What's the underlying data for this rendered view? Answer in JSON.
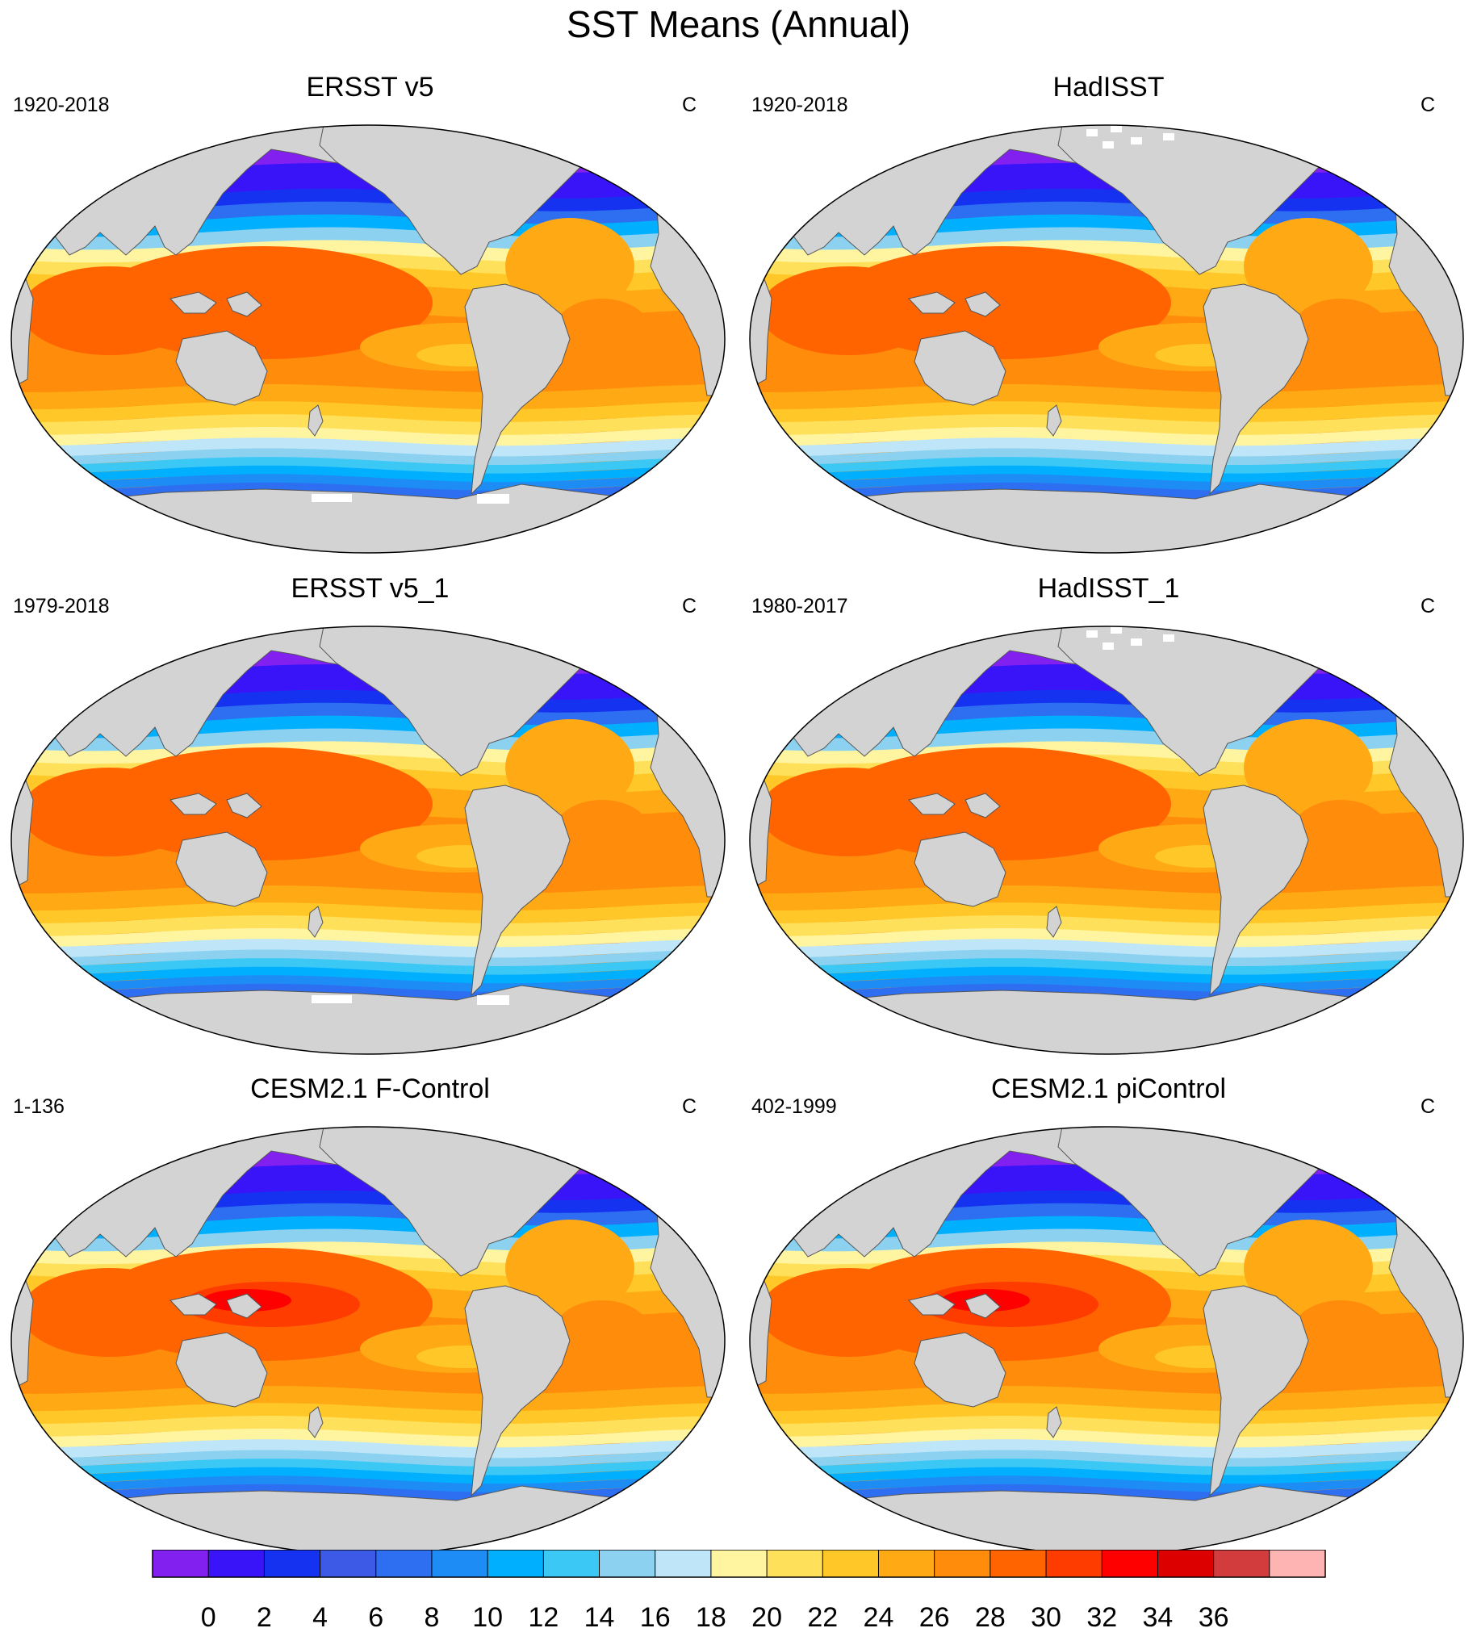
{
  "title": "SST Means (Annual)",
  "panels": [
    {
      "title": "ERSST v5",
      "years": "1920-2018",
      "units": "C"
    },
    {
      "title": "HadISST",
      "years": "1920-2018",
      "units": "C"
    },
    {
      "title": "ERSST v5_1",
      "years": "1979-2018",
      "units": "C"
    },
    {
      "title": "HadISST_1",
      "years": "1980-2017",
      "units": "C"
    },
    {
      "title": "CESM2.1 F-Control",
      "years": "1-136",
      "units": "C"
    },
    {
      "title": "CESM2.1 piControl",
      "years": "402-1999",
      "units": "C"
    }
  ],
  "colorbar": {
    "labels": [
      "0",
      "2",
      "4",
      "6",
      "8",
      "10",
      "12",
      "14",
      "16",
      "18",
      "20",
      "22",
      "24",
      "26",
      "28",
      "30",
      "32",
      "34",
      "36"
    ],
    "colors": [
      "#8220f0",
      "#3a14f8",
      "#1432f0",
      "#3c5ae6",
      "#2e6ef0",
      "#1e8cf5",
      "#00b0ff",
      "#3cc8f5",
      "#8cd2f0",
      "#bee6f8",
      "#fff5a0",
      "#ffe05a",
      "#ffc828",
      "#ffaa14",
      "#ff8c0a",
      "#ff6400",
      "#ff3c00",
      "#ff0000",
      "#dc0000",
      "#d23c3c",
      "#ffb4b4"
    ]
  },
  "map": {
    "land_color": "#d3d3d3",
    "missing_color": "#ffffff"
  }
}
